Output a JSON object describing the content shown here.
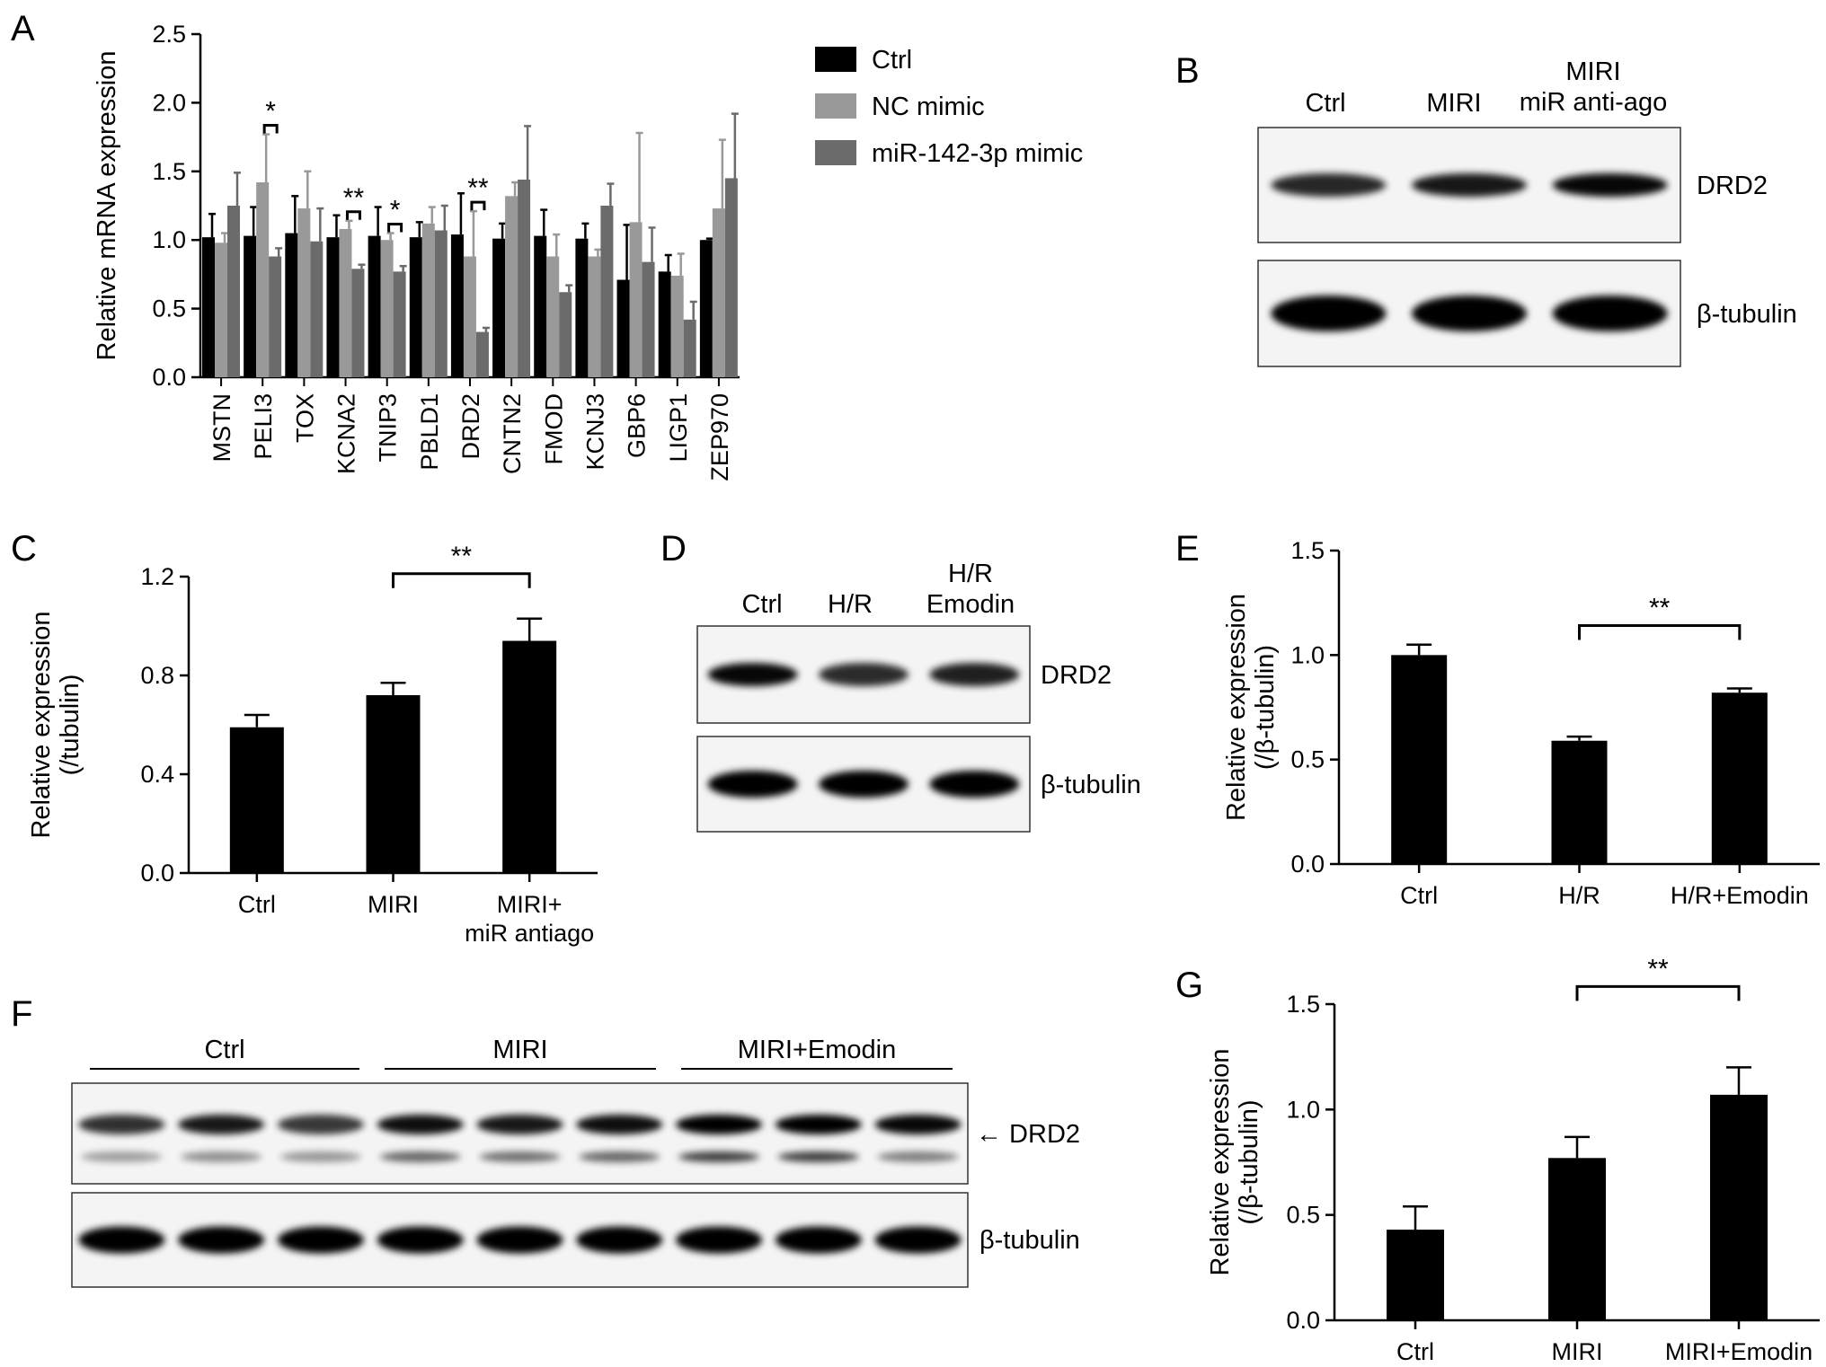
{
  "panel_letters": [
    "A",
    "B",
    "C",
    "D",
    "E",
    "F",
    "G"
  ],
  "chart_data": [
    {
      "panel": "A",
      "type": "bar",
      "ylabel": "Relative mRNA expression",
      "ylim": [
        0,
        2.5
      ],
      "yticks": [
        "0.0",
        "0.5",
        "1.0",
        "1.5",
        "2.0",
        "2.5"
      ],
      "categories": [
        "MSTN",
        "PELI3",
        "TOX",
        "KCNA2",
        "TNIP3",
        "PBLD1",
        "DRD2",
        "CNTN2",
        "FMOD",
        "KCNJ3",
        "GBP6",
        "LIGP1",
        "ZEP970"
      ],
      "series": [
        {
          "name": "Ctrl",
          "color": "#000000",
          "values": [
            1.02,
            1.03,
            1.05,
            1.02,
            1.03,
            1.02,
            1.04,
            1.01,
            1.03,
            1.01,
            0.71,
            0.77,
            1.0
          ],
          "errors": [
            0.17,
            0.21,
            0.27,
            0.16,
            0.21,
            0.11,
            0.3,
            0.11,
            0.19,
            0.11,
            0.4,
            0.12,
            0.01
          ]
        },
        {
          "name": "NC mimic",
          "color": "#999999",
          "values": [
            0.98,
            1.42,
            1.23,
            1.08,
            1.0,
            1.12,
            0.88,
            1.32,
            0.88,
            0.88,
            1.13,
            0.74,
            1.23
          ],
          "errors": [
            0.07,
            0.35,
            0.27,
            0.06,
            0.05,
            0.12,
            0.33,
            0.1,
            0.16,
            0.05,
            0.65,
            0.16,
            0.5
          ]
        },
        {
          "name": "miR-142-3p mimic",
          "color": "#6b6b6b",
          "values": [
            1.25,
            0.88,
            0.99,
            0.79,
            0.77,
            1.07,
            0.33,
            1.44,
            0.62,
            1.25,
            0.84,
            0.42,
            1.45
          ],
          "errors": [
            0.24,
            0.06,
            0.24,
            0.03,
            0.04,
            0.18,
            0.03,
            0.39,
            0.05,
            0.16,
            0.25,
            0.13,
            0.47
          ]
        }
      ],
      "significance": [
        {
          "category": "PELI3",
          "label": "*"
        },
        {
          "category": "KCNA2",
          "label": "**"
        },
        {
          "category": "TNIP3",
          "label": "*"
        },
        {
          "category": "DRD2",
          "label": "**"
        }
      ]
    },
    {
      "panel": "C",
      "type": "bar",
      "ylabel_lines": [
        "Relative expression",
        "(/tubulin)"
      ],
      "ylim": [
        0,
        1.2
      ],
      "yticks": [
        "0.0",
        "0.4",
        "0.8",
        "1.2"
      ],
      "categories": [
        [
          "Ctrl"
        ],
        [
          "MIRI"
        ],
        [
          "MIRI+",
          "miR antiago"
        ]
      ],
      "values": [
        0.59,
        0.72,
        0.94
      ],
      "errors": [
        0.05,
        0.05,
        0.09
      ],
      "bar_color": "#000000",
      "significance": [
        {
          "from": 1,
          "to": 2,
          "label": "**"
        }
      ]
    },
    {
      "panel": "E",
      "type": "bar",
      "ylabel_lines": [
        "Relative expression",
        "(/β-tubulin)"
      ],
      "ylim": [
        0,
        1.5
      ],
      "yticks": [
        "0.0",
        "0.5",
        "1.0",
        "1.5"
      ],
      "categories": [
        [
          "Ctrl"
        ],
        [
          "H/R"
        ],
        [
          "H/R+Emodin"
        ]
      ],
      "values": [
        1.0,
        0.59,
        0.82
      ],
      "errors": [
        0.05,
        0.02,
        0.02
      ],
      "bar_color": "#000000",
      "significance": [
        {
          "from": 1,
          "to": 2,
          "label": "**"
        }
      ]
    },
    {
      "panel": "G",
      "type": "bar",
      "ylabel_lines": [
        "Relative expression",
        "(/β-tubulin)"
      ],
      "ylim": [
        0,
        1.5
      ],
      "yticks": [
        "0.0",
        "0.5",
        "1.0",
        "1.5"
      ],
      "categories": [
        [
          "Ctrl"
        ],
        [
          "MIRI"
        ],
        [
          "MIRI+Emodin"
        ]
      ],
      "values": [
        0.43,
        0.77,
        1.07
      ],
      "errors": [
        0.11,
        0.1,
        0.13
      ],
      "bar_color": "#000000",
      "significance": [
        {
          "from": 1,
          "to": 2,
          "label": "**"
        }
      ]
    }
  ],
  "blots": {
    "B": {
      "lanes": [
        [
          "Ctrl"
        ],
        [
          "MIRI"
        ],
        [
          "MIRI",
          "miR anti-ago"
        ]
      ],
      "bands": [
        {
          "label": "DRD2",
          "intensity": [
            0.75,
            0.85,
            0.95
          ]
        },
        {
          "label": "β-tubulin",
          "intensity": [
            1.0,
            1.0,
            1.0
          ]
        }
      ]
    },
    "D": {
      "lanes": [
        [
          "Ctrl"
        ],
        [
          "H/R"
        ],
        [
          "H/R",
          "Emodin"
        ]
      ],
      "bands": [
        {
          "label": "DRD2",
          "intensity": [
            0.95,
            0.72,
            0.8
          ]
        },
        {
          "label": "β-tubulin",
          "intensity": [
            1.0,
            1.0,
            1.0
          ]
        }
      ]
    },
    "F": {
      "groups": [
        "Ctrl",
        "MIRI",
        "MIRI+Emodin"
      ],
      "arrow_label": "← DRD2",
      "bands": [
        {
          "label": "DRD2",
          "intensity": [
            0.7,
            0.85,
            0.65,
            0.9,
            0.85,
            0.9,
            1.0,
            1.0,
            0.95
          ]
        },
        {
          "label": "β-tubulin",
          "intensity": [
            1.0,
            1.0,
            1.0,
            1.0,
            1.0,
            1.0,
            1.0,
            1.0,
            1.0
          ]
        }
      ]
    }
  }
}
